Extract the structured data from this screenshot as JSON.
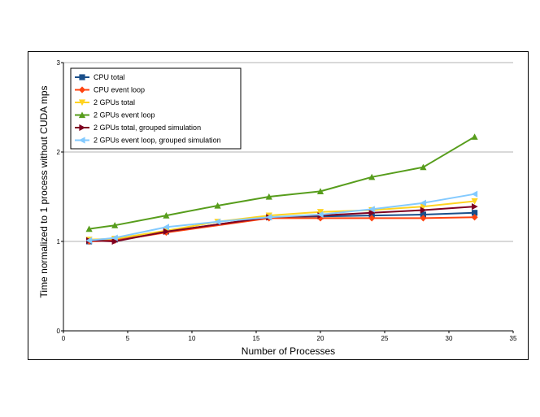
{
  "chart_data": {
    "type": "line",
    "title": "",
    "xlabel": "Number of Processes",
    "ylabel": "Time normalized to 1 process without CUDA mps",
    "xlim": [
      0,
      35
    ],
    "ylim": [
      0,
      3
    ],
    "xticks": [
      0,
      5,
      10,
      15,
      20,
      25,
      30,
      35
    ],
    "yticks": [
      0,
      1,
      2,
      3
    ],
    "grid": true,
    "legend_position": "top-left",
    "series": [
      {
        "name": "CPU total",
        "color": "#1a4f8a",
        "marker": "square",
        "x": [
          2,
          4,
          8,
          16,
          20,
          24,
          28,
          32
        ],
        "y": [
          1.0,
          1.02,
          1.11,
          1.27,
          1.28,
          1.29,
          1.3,
          1.32
        ]
      },
      {
        "name": "CPU event loop",
        "color": "#ff4411",
        "marker": "diamond",
        "x": [
          2,
          4,
          8,
          16,
          20,
          24,
          28,
          32
        ],
        "y": [
          1.0,
          1.01,
          1.1,
          1.26,
          1.26,
          1.26,
          1.26,
          1.27
        ]
      },
      {
        "name": "2 GPUs total",
        "color": "#ffd320",
        "marker": "triangle-down",
        "x": [
          2,
          4,
          8,
          12,
          16,
          20,
          24,
          28,
          32
        ],
        "y": [
          1.02,
          1.03,
          1.12,
          1.22,
          1.29,
          1.33,
          1.35,
          1.39,
          1.45
        ]
      },
      {
        "name": "2 GPUs event loop",
        "color": "#579d1c",
        "marker": "triangle-up",
        "x": [
          2,
          4,
          8,
          12,
          16,
          20,
          24,
          28,
          32
        ],
        "y": [
          1.14,
          1.18,
          1.29,
          1.4,
          1.5,
          1.56,
          1.72,
          1.83,
          2.17
        ]
      },
      {
        "name": "2 GPUs total, grouped simulation",
        "color": "#7e0021",
        "marker": "triangle-right",
        "x": [
          2,
          4,
          8,
          16,
          20,
          24,
          28,
          32
        ],
        "y": [
          1.01,
          1.0,
          1.11,
          1.27,
          1.29,
          1.32,
          1.35,
          1.39
        ]
      },
      {
        "name": "2 GPUs event loop, grouped simulation",
        "color": "#83caff",
        "marker": "triangle-left",
        "x": [
          2,
          4,
          8,
          12,
          16,
          20,
          24,
          28,
          32
        ],
        "y": [
          1.01,
          1.04,
          1.16,
          1.22,
          1.27,
          1.3,
          1.36,
          1.43,
          1.53
        ]
      }
    ]
  }
}
